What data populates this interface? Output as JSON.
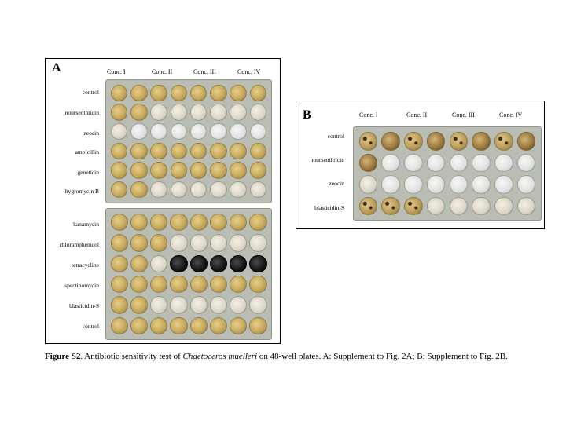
{
  "panel_a": {
    "letter": "A",
    "concentrations": [
      "Conc. I",
      "Conc. II",
      "Conc. III",
      "Conc. IV"
    ],
    "rows_plate1": [
      "control",
      "nourseothricin",
      "zeocin",
      "ampicillin",
      "geneticin",
      "hygromycin B"
    ],
    "rows_plate2": [
      "kanamycin",
      "chloramphenicol",
      "tetracycline",
      "spectinomycin",
      "blasticidin-S",
      "control"
    ]
  },
  "panel_b": {
    "letter": "B",
    "concentrations": [
      "Conc. I",
      "Conc. II",
      "Conc. III",
      "Conc. IV"
    ],
    "rows": [
      "control",
      "nourseothricin",
      "zeocin",
      "blasticidin-S"
    ]
  },
  "caption": {
    "label": "Figure S2",
    "text_before": ". Antibiotic sensitivity test of ",
    "species": "Chaetoceros muelleri",
    "text_after": " on 48-well plates. A: Supplement to Fig. 2A; B: Supplement to Fig. 2B."
  }
}
